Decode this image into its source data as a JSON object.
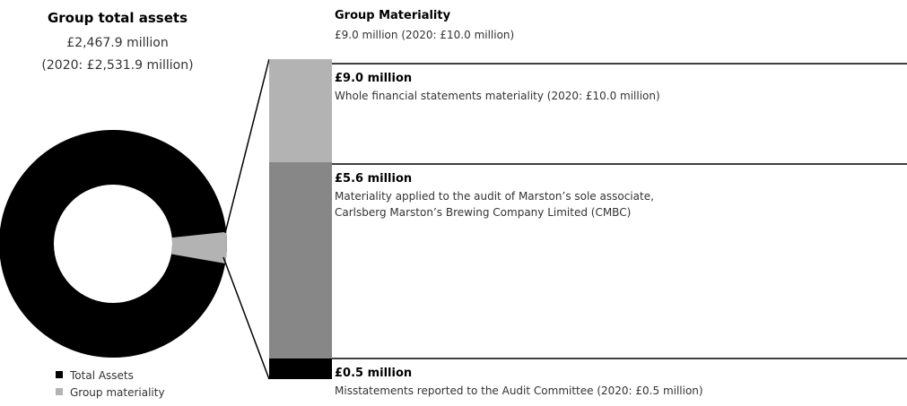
{
  "assets": {
    "title": "Group total assets",
    "value": "£2,467.9 million",
    "prior": "(2020: £2,531.9 million)"
  },
  "legend": [
    "Total Assets",
    "Group materiality"
  ],
  "header": {
    "title": "Group Materiality",
    "subtitle": "£9.0 million (2020: £10.0 million)"
  },
  "items": [
    {
      "title": "£9.0 million",
      "lines": [
        "Whole financial statements materiality (2020: £10.0 million)"
      ]
    },
    {
      "title": "£5.6 million",
      "lines": [
        "Materiality applied to the audit of Marston’s sole associate,",
        "Carlsberg Marston’s Brewing Company Limited (CMBC)"
      ]
    },
    {
      "title": "£0.5 million",
      "lines": [
        "Misstatements reported to the Audit Committee (2020: £0.5 million)"
      ]
    }
  ]
}
